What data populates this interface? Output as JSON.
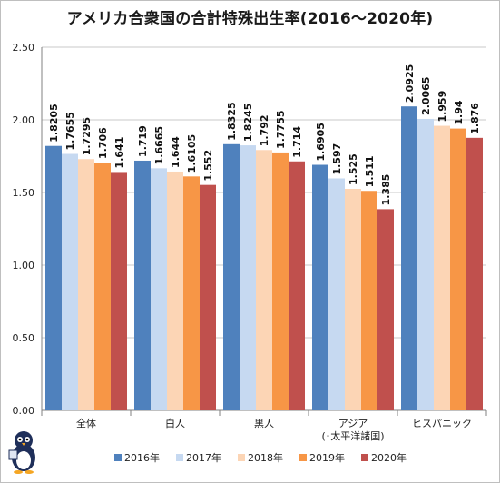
{
  "chart_data": {
    "type": "bar",
    "title": "アメリカ合衆国の合計特殊出生率(2016～2020年)",
    "xlabel": "",
    "ylabel": "",
    "ylim": [
      0,
      2.5
    ],
    "yticks": [
      "0.00",
      "0.50",
      "1.00",
      "1.50",
      "2.00",
      "2.50"
    ],
    "grid": true,
    "legend_position": "bottom",
    "categories": [
      [
        "全体"
      ],
      [
        "白人"
      ],
      [
        "黒人"
      ],
      [
        "アジア",
        "(･太平洋諸国)"
      ],
      [
        "ヒスパニック"
      ]
    ],
    "series": [
      {
        "name": "2016年",
        "color": "#4f81bd",
        "values": [
          1.8205,
          1.719,
          1.8325,
          1.6905,
          2.0925
        ],
        "labels": [
          "1.8205",
          "1.719",
          "1.8325",
          "1.6905",
          "2.0925"
        ]
      },
      {
        "name": "2017年",
        "color": "#c6d9f1",
        "values": [
          1.7655,
          1.6665,
          1.8245,
          1.597,
          2.0065
        ],
        "labels": [
          "1.7655",
          "1.6665",
          "1.8245",
          "1.597",
          "2.0065"
        ]
      },
      {
        "name": "2018年",
        "color": "#fcd5b5",
        "values": [
          1.7295,
          1.644,
          1.792,
          1.525,
          1.959
        ],
        "labels": [
          "1.7295",
          "1.644",
          "1.792",
          "1.525",
          "1.959"
        ]
      },
      {
        "name": "2019年",
        "color": "#f79646",
        "values": [
          1.706,
          1.6105,
          1.7755,
          1.511,
          1.94
        ],
        "labels": [
          "1.706",
          "1.6105",
          "1.7755",
          "1.511",
          "1.94"
        ]
      },
      {
        "name": "2020年",
        "color": "#c0504d",
        "values": [
          1.641,
          1.552,
          1.714,
          1.385,
          1.876
        ],
        "labels": [
          "1.641",
          "1.552",
          "1.714",
          "1.385",
          "1.876"
        ]
      }
    ]
  },
  "logo": {
    "icon": "penguin-mascot-icon"
  }
}
